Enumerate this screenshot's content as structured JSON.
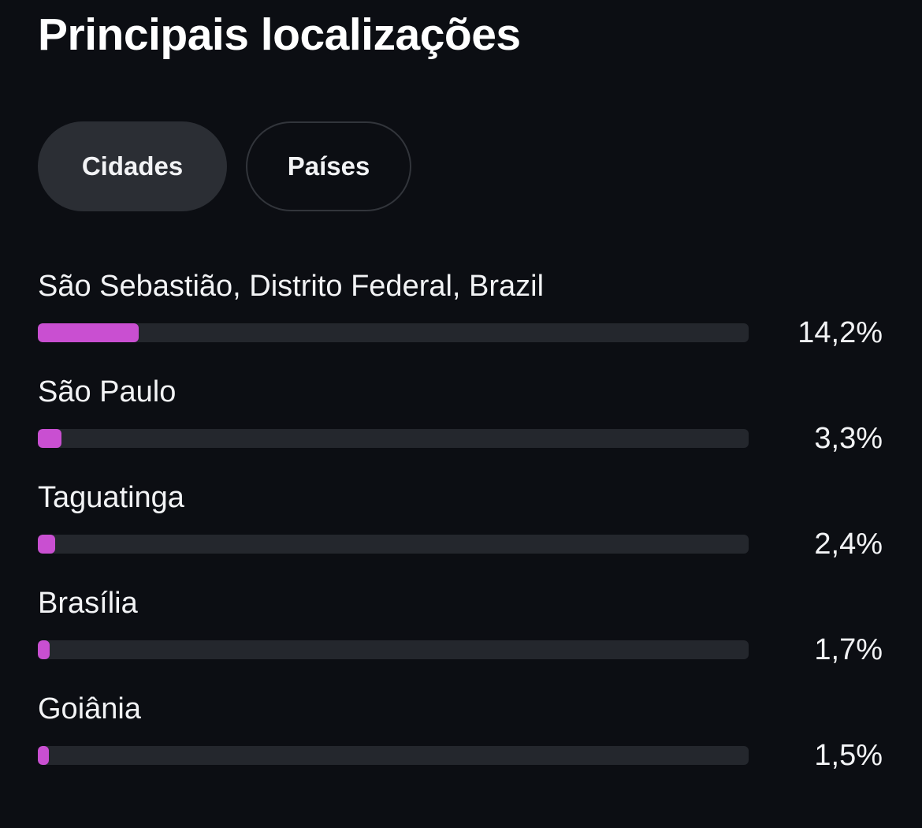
{
  "header": {
    "title": "Principais localizações"
  },
  "tabs": [
    {
      "label": "Cidades",
      "active": true
    },
    {
      "label": "Países",
      "active": false
    }
  ],
  "locations": [
    {
      "name": "São Sebastião, Distrito Federal, Brazil",
      "percent_label": "14,2%",
      "fill_fraction": 0.142
    },
    {
      "name": "São Paulo",
      "percent_label": "3,3%",
      "fill_fraction": 0.033
    },
    {
      "name": "Taguatinga",
      "percent_label": "2,4%",
      "fill_fraction": 0.024
    },
    {
      "name": "Brasília",
      "percent_label": "1,7%",
      "fill_fraction": 0.017
    },
    {
      "name": "Goiânia",
      "percent_label": "1,5%",
      "fill_fraction": 0.015
    }
  ],
  "colors": {
    "background": "#0c0e13",
    "bar_fill": "#c94fd1",
    "bar_track": "#24272d",
    "active_tab": "#2b2e34"
  }
}
